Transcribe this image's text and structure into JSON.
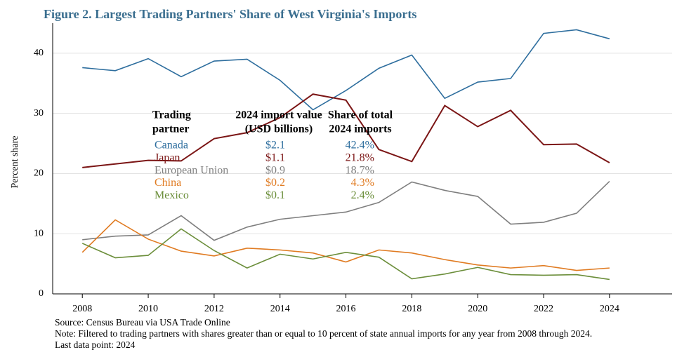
{
  "chart_data": {
    "type": "line",
    "title": "Figure 2. Largest Trading Partners' Share of West Virginia's Imports",
    "y_label": "Percent share",
    "x": [
      2008,
      2009,
      2010,
      2011,
      2012,
      2013,
      2014,
      2015,
      2016,
      2017,
      2018,
      2019,
      2020,
      2021,
      2022,
      2023,
      2024
    ],
    "xlim": [
      2007.1,
      2025.9
    ],
    "xticks": [
      2008,
      2010,
      2012,
      2014,
      2016,
      2018,
      2020,
      2022,
      2024
    ],
    "ylim": [
      0,
      45
    ],
    "yticks": [
      0,
      10,
      20,
      30,
      40
    ],
    "grid": true,
    "series": [
      {
        "name": "Canada",
        "color": "#2e6e9e",
        "values": [
          37.6,
          37.1,
          39.1,
          36.1,
          38.7,
          39.0,
          35.5,
          30.6,
          33.8,
          37.5,
          39.7,
          32.5,
          35.2,
          35.8,
          43.3,
          43.9,
          42.4
        ]
      },
      {
        "name": "Japan",
        "color": "#7b1515",
        "values": [
          21.0,
          21.6,
          22.2,
          22.1,
          25.8,
          26.8,
          29.3,
          33.2,
          32.2,
          24.0,
          22.0,
          31.3,
          27.8,
          30.5,
          24.8,
          24.9,
          21.8
        ]
      },
      {
        "name": "European Union",
        "color": "#7f7f7f",
        "values": [
          9.0,
          9.6,
          9.8,
          13.0,
          8.9,
          11.1,
          12.4,
          13.0,
          13.6,
          15.2,
          18.6,
          17.2,
          16.2,
          11.6,
          11.9,
          13.4,
          18.7
        ]
      },
      {
        "name": "China",
        "color": "#e07b22",
        "values": [
          6.9,
          12.3,
          9.1,
          7.1,
          6.3,
          7.6,
          7.3,
          6.8,
          5.3,
          7.3,
          6.8,
          5.7,
          4.8,
          4.3,
          4.7,
          3.9,
          4.3
        ]
      },
      {
        "name": "Mexico",
        "color": "#6b8e3a",
        "values": [
          8.4,
          6.0,
          6.4,
          10.8,
          7.2,
          4.3,
          6.6,
          5.8,
          6.9,
          6.1,
          2.5,
          3.3,
          4.4,
          3.2,
          3.1,
          3.2,
          2.4
        ]
      }
    ],
    "legend_table": {
      "headers": [
        [
          "Trading",
          "partner"
        ],
        [
          "2024 import value",
          "(USD billions)"
        ],
        [
          "Share of total",
          "2024 imports"
        ]
      ],
      "import_values": [
        "$2.1",
        "$1.1",
        "$0.9",
        "$0.2",
        "$0.1"
      ],
      "shares": [
        "42.4%",
        "21.8%",
        "18.7%",
        "4.3%",
        "2.4%"
      ]
    },
    "notes": [
      "Source: Census Bureau via USA Trade Online",
      "Note: Filtered to trading partners with shares greater than or equal to 10 percent of state annual imports for any year from 2008 through 2024.",
      "Last data point: 2024"
    ]
  }
}
